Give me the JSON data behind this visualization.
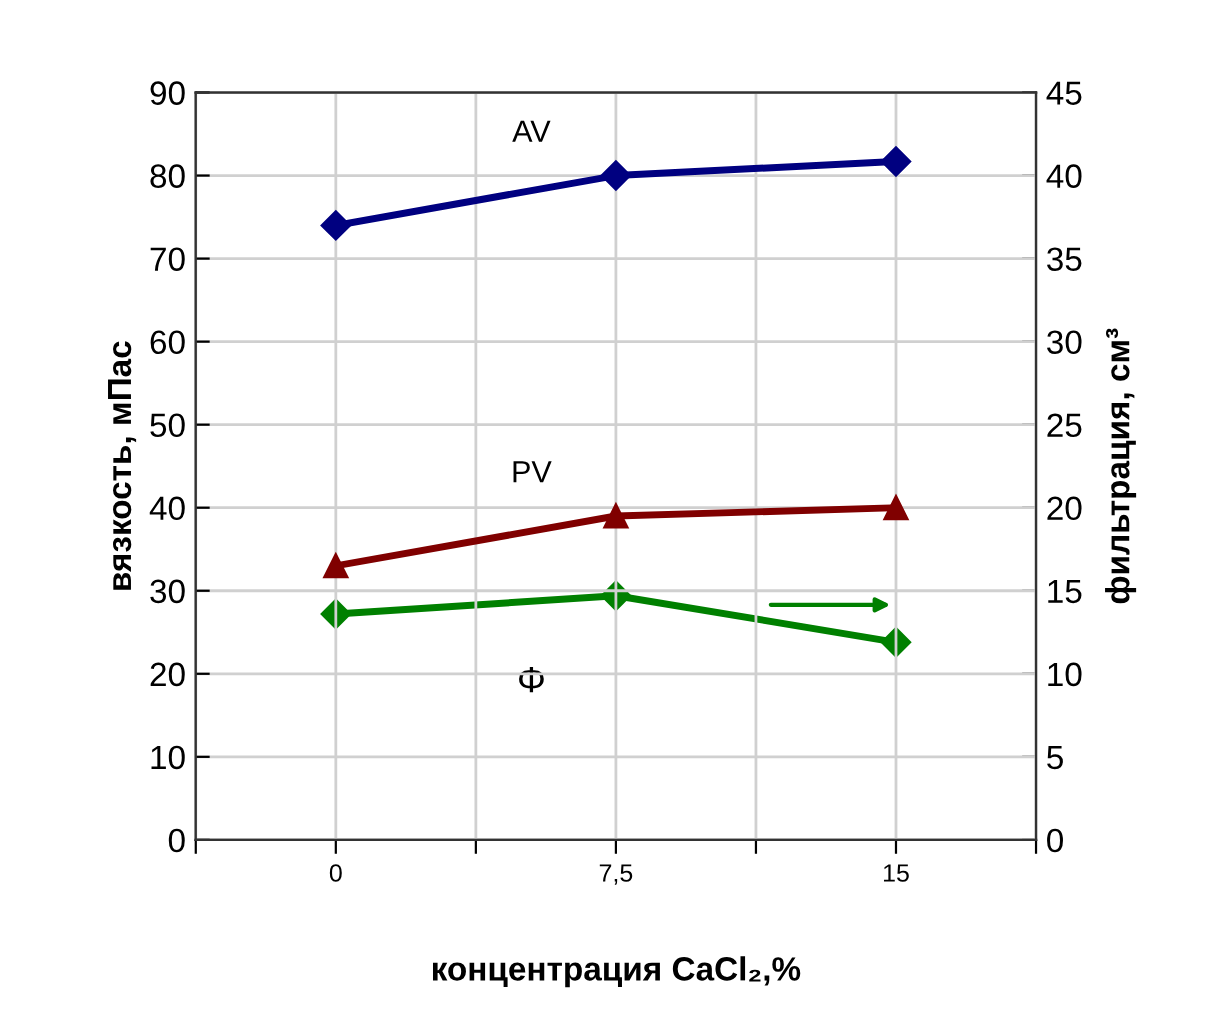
{
  "chart_data": {
    "type": "line",
    "xlabel": "концентрация CaCl₂,%",
    "ylabel": "вязкость, мПас",
    "y2label": "фильтрация, см³",
    "x": [
      0,
      7.5,
      15
    ],
    "series": [
      {
        "name": "AV",
        "color": "#000080",
        "values": [
          74,
          80,
          81.7
        ],
        "marker": "diamond"
      },
      {
        "name": "PV",
        "color": "#800000",
        "values": [
          33,
          39,
          40
        ],
        "marker": "triangle"
      },
      {
        "name": "Φ",
        "color": "#008000",
        "values": [
          13.6,
          14.7,
          11.9
        ],
        "marker": "diamond",
        "axis": "y2"
      }
    ],
    "xlim": [
      -3.75,
      18.75
    ],
    "xticks": [
      {
        "value": -3.75,
        "label": null
      },
      0,
      {
        "value": 3.75,
        "label": null
      },
      {
        "value": 7.5,
        "label": "7,5"
      },
      {
        "value": 11.25,
        "label": null
      },
      15,
      {
        "value": 18.75,
        "label": null
      }
    ],
    "ylim": [
      0,
      90
    ],
    "yticks": [
      0,
      10,
      20,
      30,
      40,
      50,
      60,
      70,
      80,
      90
    ],
    "y2lim": [
      0,
      45
    ],
    "y2ticks": [
      0,
      5,
      10,
      15,
      20,
      25,
      30,
      35,
      40,
      45
    ],
    "grid": true,
    "legend": false,
    "line_style": "solid"
  }
}
